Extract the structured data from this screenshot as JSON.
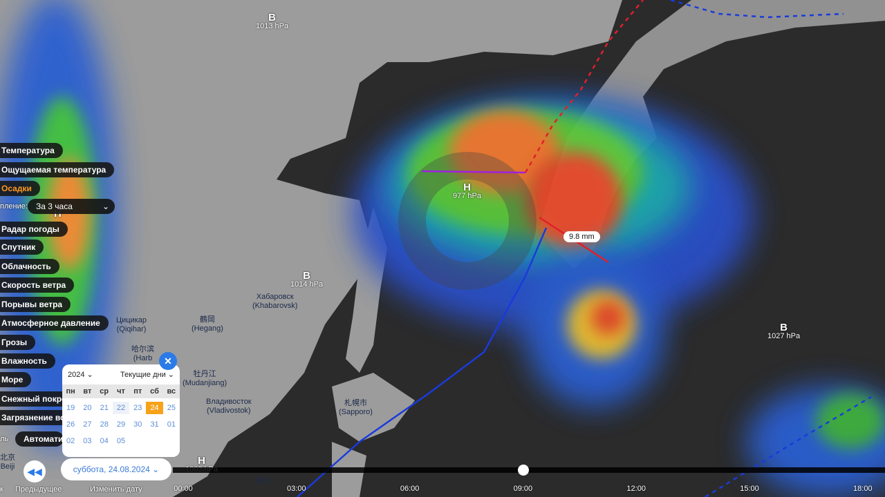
{
  "colors": {
    "land": "#9c9c9c",
    "sea": "#2b2b2b",
    "accent": "#ff9a1c",
    "button_blue": "#2b7ae8",
    "selected_day": "#f7a21a"
  },
  "layers": [
    {
      "label": "Температура",
      "active": false
    },
    {
      "label": "Ощущаемая температура",
      "active": false
    },
    {
      "label": "Осадки",
      "active": true
    },
    {
      "label": "Радар погоды",
      "active": false
    },
    {
      "label": "Спутник",
      "active": false
    },
    {
      "label": "Облачность",
      "active": false
    },
    {
      "label": "Скорость ветра",
      "active": false
    },
    {
      "label": "Порывы ветра",
      "active": false
    },
    {
      "label": "Атмосферное давление",
      "active": false
    },
    {
      "label": "Грозы",
      "active": false
    },
    {
      "label": "Влажность",
      "active": false
    },
    {
      "label": "Море",
      "active": false
    },
    {
      "label": "Снежный покро",
      "active": false
    },
    {
      "label": "Загрязнение во",
      "active": false
    }
  ],
  "accumulation": {
    "label": "пление:",
    "value": "За 3 часа"
  },
  "model": {
    "label": "ль",
    "value": "Автомати"
  },
  "pressure": [
    {
      "type": "В",
      "value": "1013 hPa"
    },
    {
      "type": "Н",
      "value": "977 hPa"
    },
    {
      "type": "В",
      "value": "1014 hPa"
    },
    {
      "type": "В",
      "value": "1027 hPa"
    },
    {
      "type": "Н",
      "value": "1003 hPa"
    },
    {
      "type": "Н",
      "value": ""
    }
  ],
  "cities": [
    {
      "name": "Хабаровск",
      "sub": "(Khabarovsk)"
    },
    {
      "name": "鶴岡",
      "sub": "(Hegang)"
    },
    {
      "name": "Цицикар",
      "sub": "(Qiqihar)"
    },
    {
      "name": "哈尔滨",
      "sub": "(Harb"
    },
    {
      "name": "牡丹江",
      "sub": "(Mudanjiang)"
    },
    {
      "name": "Владивосток",
      "sub": "(Vladivostok)"
    },
    {
      "name": "札幌市",
      "sub": "(Sapporo)"
    },
    {
      "name": "北京",
      "sub": "Beiji"
    },
    {
      "name": "仙台",
      "sub": ""
    }
  ],
  "tooltip": "9.8 mm",
  "calendar": {
    "year": "2024",
    "range": "Текущие дни",
    "weekdays": [
      "пн",
      "вт",
      "ср",
      "чт",
      "пт",
      "сб",
      "вс"
    ],
    "days": [
      "19",
      "20",
      "21",
      "22",
      "23",
      "24",
      "25",
      "26",
      "27",
      "28",
      "29",
      "30",
      "31",
      "01",
      "02",
      "03",
      "04",
      "05"
    ],
    "today": "22",
    "selected": "24",
    "close_icon": "close-icon"
  },
  "date_button": "суббота, 24.08.2024",
  "bottom": {
    "prev_label": "Предыдущее",
    "change_date_label": "Изменить дату",
    "left_cut": "к"
  },
  "timeline": {
    "ticks": [
      "00:00",
      "03:00",
      "06:00",
      "09:00",
      "12:00",
      "15:00",
      "18:00"
    ],
    "current": "09:00"
  }
}
